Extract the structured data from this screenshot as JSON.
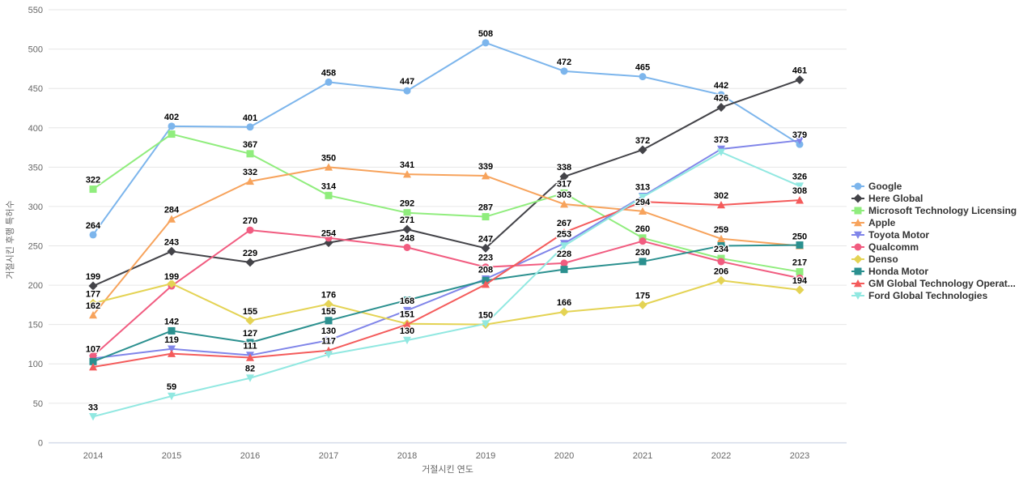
{
  "chart_data": {
    "type": "line",
    "title": "",
    "xlabel": "거절시킨 연도",
    "ylabel": "거절시킨 후행 특허수",
    "categories": [
      "2014",
      "2015",
      "2016",
      "2017",
      "2018",
      "2019",
      "2020",
      "2021",
      "2022",
      "2023"
    ],
    "ylim": [
      0,
      550
    ],
    "y_ticks": [
      0,
      50,
      100,
      150,
      200,
      250,
      300,
      350,
      400,
      450,
      500,
      550
    ],
    "grid": "horizontal",
    "legend_position": "right",
    "series": [
      {
        "id": "google",
        "name": "Google",
        "color": "#7cb5ec",
        "marker": "circle",
        "values": [
          264,
          402,
          401,
          458,
          447,
          508,
          472,
          465,
          442,
          379
        ],
        "label_visible": [
          1,
          1,
          1,
          1,
          1,
          1,
          1,
          1,
          1,
          1
        ]
      },
      {
        "id": "here-global",
        "name": "Here Global",
        "color": "#434348",
        "marker": "diamond",
        "values": [
          199,
          243,
          229,
          254,
          271,
          247,
          338,
          372,
          426,
          461
        ],
        "label_visible": [
          1,
          1,
          1,
          1,
          1,
          1,
          1,
          1,
          1,
          1
        ]
      },
      {
        "id": "microsoft-technology-licensing",
        "name": "Microsoft Technology Licensing",
        "color": "#90ed7d",
        "marker": "square",
        "values": [
          322,
          392,
          367,
          314,
          292,
          287,
          317,
          260,
          234,
          217
        ],
        "label_visible": [
          1,
          0,
          1,
          1,
          1,
          1,
          1,
          1,
          1,
          1
        ]
      },
      {
        "id": "apple",
        "name": "Apple",
        "color": "#f7a35c",
        "marker": "triangle",
        "values": [
          162,
          284,
          332,
          350,
          341,
          339,
          303,
          294,
          259,
          250
        ],
        "label_visible": [
          1,
          1,
          1,
          1,
          1,
          1,
          1,
          1,
          1,
          1
        ]
      },
      {
        "id": "toyota-motor",
        "name": "Toyota Motor",
        "color": "#8085e9",
        "marker": "triangle-down",
        "values": [
          107,
          119,
          111,
          130,
          168,
          208,
          253,
          313,
          373,
          384
        ],
        "label_visible": [
          1,
          1,
          1,
          1,
          1,
          1,
          1,
          1,
          1,
          0
        ]
      },
      {
        "id": "qualcomm",
        "name": "Qualcomm",
        "color": "#f15c80",
        "marker": "circle",
        "values": [
          110,
          199,
          270,
          260,
          248,
          223,
          228,
          256,
          230,
          209
        ],
        "label_visible": [
          0,
          1,
          1,
          0,
          1,
          1,
          1,
          0,
          0,
          0
        ]
      },
      {
        "id": "denso",
        "name": "Denso",
        "color": "#e4d354",
        "marker": "diamond",
        "values": [
          177,
          202,
          155,
          176,
          151,
          150,
          166,
          175,
          206,
          194
        ],
        "label_visible": [
          1,
          0,
          1,
          1,
          1,
          1,
          1,
          1,
          1,
          1
        ]
      },
      {
        "id": "honda-motor",
        "name": "Honda Motor",
        "color": "#2b908f",
        "marker": "square",
        "values": [
          103,
          142,
          127,
          155,
          181,
          206,
          220,
          230,
          250,
          251
        ],
        "label_visible": [
          0,
          1,
          1,
          1,
          0,
          0,
          0,
          1,
          0,
          0
        ]
      },
      {
        "id": "gm-global-technology-operations",
        "name": "GM Global Technology Operat...",
        "color": "#f45b5b",
        "marker": "triangle",
        "values": [
          96,
          113,
          108,
          117,
          150,
          201,
          267,
          306,
          302,
          308
        ],
        "label_visible": [
          0,
          0,
          0,
          1,
          0,
          0,
          1,
          0,
          1,
          1
        ]
      },
      {
        "id": "ford-global-technologies",
        "name": "Ford Global Technologies",
        "color": "#91e8e1",
        "marker": "triangle-down",
        "values": [
          33,
          59,
          82,
          112,
          130,
          151,
          250,
          312,
          369,
          326
        ],
        "label_visible": [
          1,
          1,
          1,
          0,
          1,
          0,
          0,
          0,
          0,
          1
        ]
      }
    ]
  }
}
